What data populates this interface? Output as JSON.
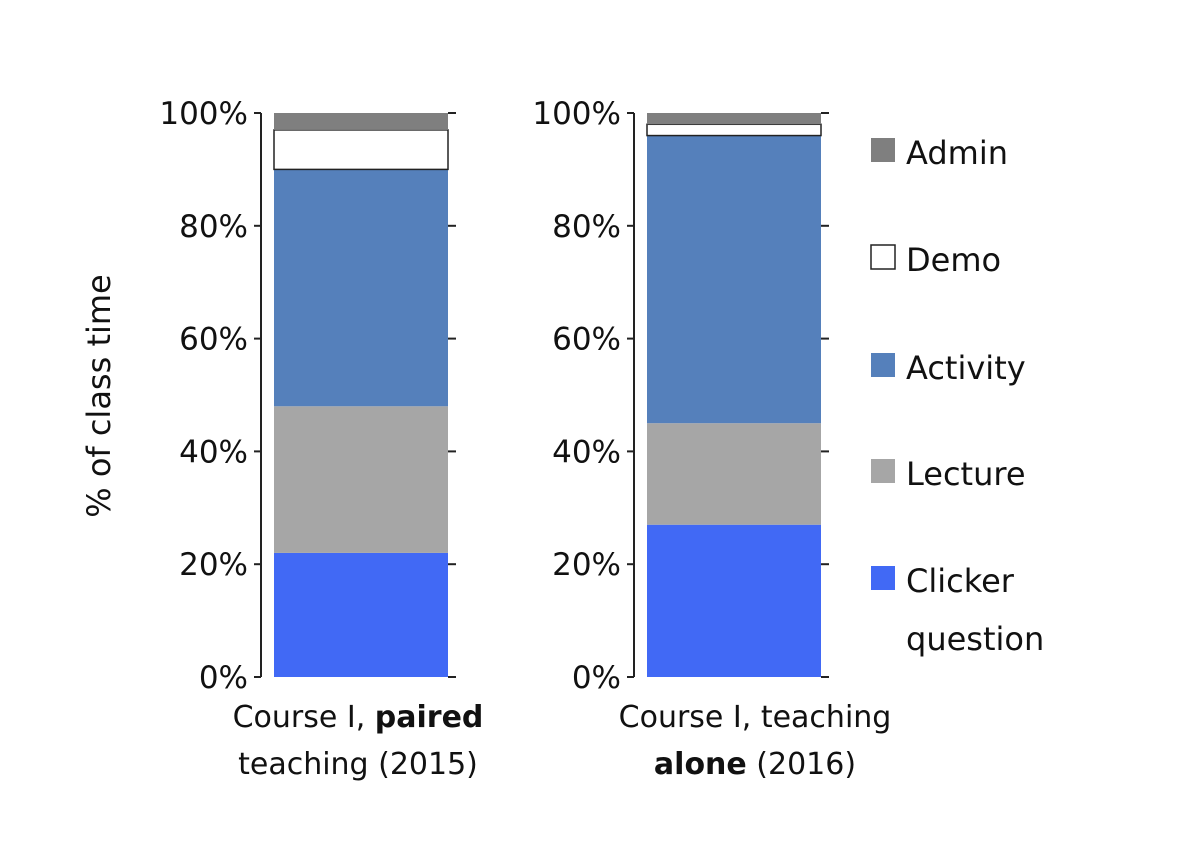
{
  "chart_data": {
    "type": "bar",
    "stacked": true,
    "ylabel": "% of class time",
    "ylim": [
      0,
      100
    ],
    "yticks": [
      "0%",
      "20%",
      "40%",
      "60%",
      "80%",
      "100%"
    ],
    "panels": [
      {
        "category_lines": [
          [
            {
              "text": "Course I, ",
              "bold": false
            },
            {
              "text": "paired",
              "bold": true
            }
          ],
          [
            {
              "text": "teaching (2015)",
              "bold": false
            }
          ]
        ],
        "values": {
          "Clicker question": 22,
          "Lecture": 26,
          "Activity": 42,
          "Demo": 7,
          "Admin": 3
        }
      },
      {
        "category_lines": [
          [
            {
              "text": "Course I, teaching",
              "bold": false
            }
          ],
          [
            {
              "text": "alone",
              "bold": true
            },
            {
              "text": " (2016)",
              "bold": false
            }
          ]
        ],
        "values": {
          "Clicker question": 27,
          "Lecture": 18,
          "Activity": 51,
          "Demo": 2,
          "Admin": 2
        }
      }
    ],
    "series": [
      {
        "name": "Clicker question",
        "color": "#4169f5"
      },
      {
        "name": "Lecture",
        "color": "#a6a6a6"
      },
      {
        "name": "Activity",
        "color": "#5580bb"
      },
      {
        "name": "Demo",
        "color": "#ffffff"
      },
      {
        "name": "Admin",
        "color": "#7f7f7f"
      }
    ],
    "legend": {
      "position": "right",
      "entries": [
        {
          "series": "Admin",
          "lines": [
            "Admin"
          ]
        },
        {
          "series": "Demo",
          "lines": [
            "Demo"
          ]
        },
        {
          "series": "Activity",
          "lines": [
            "Activity"
          ]
        },
        {
          "series": "Lecture",
          "lines": [
            "Lecture"
          ]
        },
        {
          "series": "Clicker question",
          "lines": [
            "Clicker",
            "question"
          ]
        }
      ]
    },
    "grid": false
  }
}
